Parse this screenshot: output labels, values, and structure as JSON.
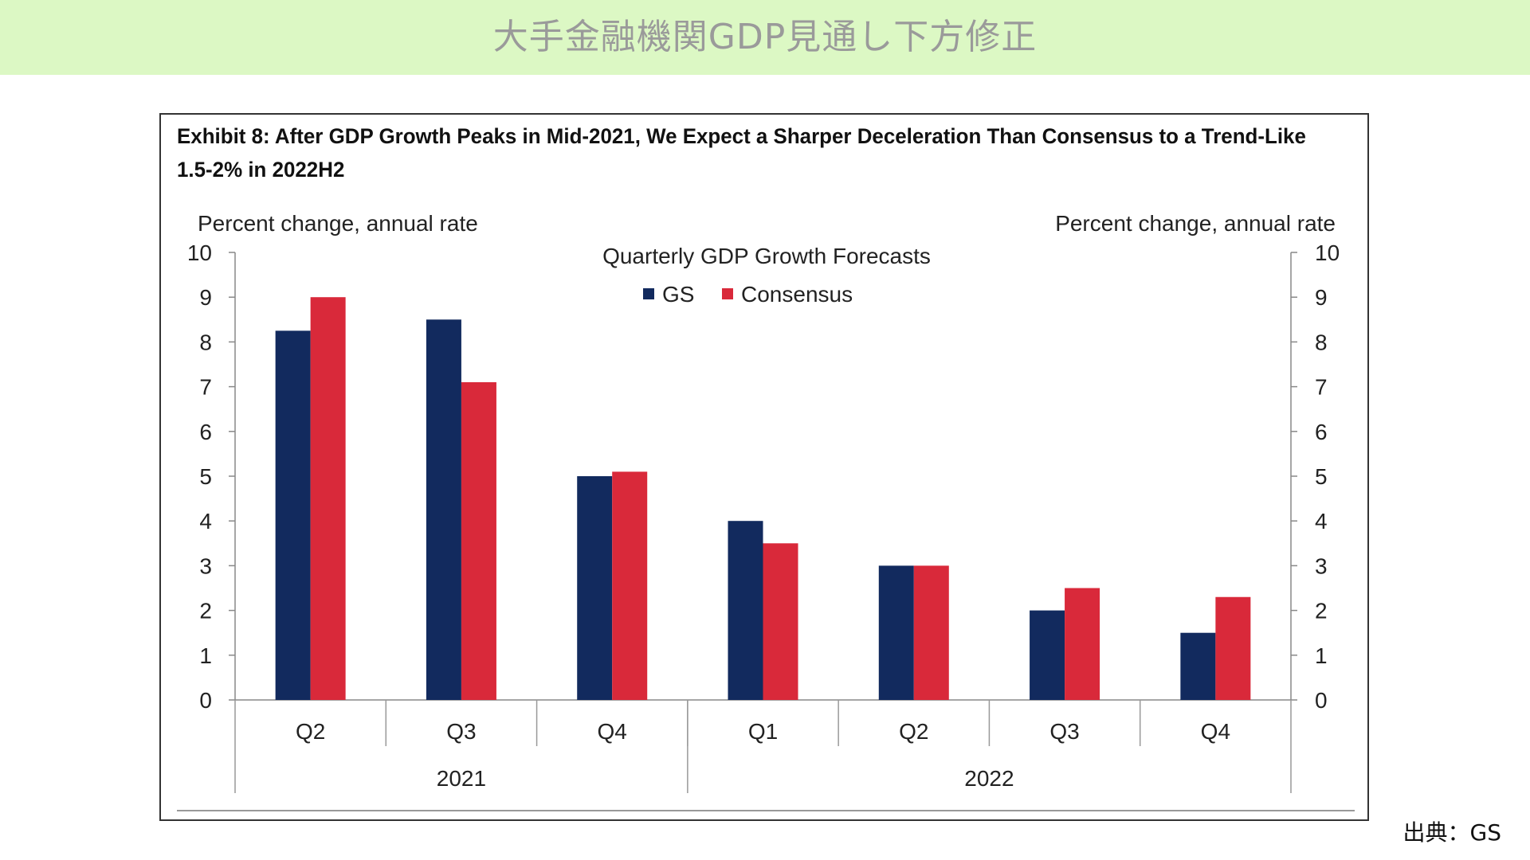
{
  "banner": {
    "title": "大手金融機関GDP見通し下方修正"
  },
  "exhibit": {
    "title": "Exhibit 8: After GDP Growth Peaks in Mid-2021, We Expect a Sharper Deceleration Than Consensus to a Trend-Like 1.5-2% in 2022H2"
  },
  "source": {
    "text": "出典：GS"
  },
  "colors": {
    "gs": "#122a5e",
    "consensus": "#d9293a"
  },
  "chart_data": {
    "type": "bar",
    "title": "Quarterly GDP Growth Forecasts",
    "ylabel_left": "Percent change, annual rate",
    "ylabel_right": "Percent change, annual rate",
    "ylim": [
      0,
      10
    ],
    "yticks": [
      "0",
      "1",
      "2",
      "3",
      "4",
      "5",
      "6",
      "7",
      "8",
      "9",
      "10"
    ],
    "categories": [
      "Q2",
      "Q3",
      "Q4",
      "Q1",
      "Q2",
      "Q3",
      "Q4"
    ],
    "groups": [
      {
        "label": "2021",
        "count": 3
      },
      {
        "label": "2022",
        "count": 4
      }
    ],
    "series": [
      {
        "name": "GS",
        "values": [
          8.25,
          8.5,
          5.0,
          4.0,
          3.0,
          2.0,
          1.5
        ]
      },
      {
        "name": "Consensus",
        "values": [
          9.0,
          7.1,
          5.1,
          3.5,
          3.0,
          2.5,
          2.3
        ]
      }
    ],
    "legend": "top-center",
    "grid": false
  }
}
